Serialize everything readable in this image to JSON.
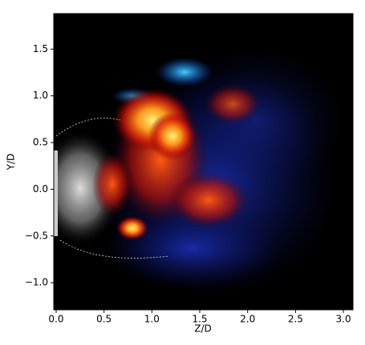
{
  "chart_data": {
    "type": "image",
    "xlabel": "Z/D",
    "ylabel": "Y/D",
    "xlim": [
      -0.025,
      3.1
    ],
    "ylim": [
      -1.29,
      1.88
    ],
    "xticks": [
      {
        "value": 0,
        "label": "0.0"
      },
      0.5,
      {
        "value": 1,
        "label": "1.0"
      },
      1.5,
      {
        "value": 2,
        "label": "2.0"
      },
      2.5,
      {
        "value": 3,
        "label": "3.0"
      }
    ],
    "yticks": [
      {
        "value": -1,
        "label": "−1.0"
      },
      {
        "value": -0.5,
        "label": "−0.5"
      },
      {
        "value": 0,
        "label": "0.0"
      },
      0.5,
      {
        "value": 1,
        "label": "1.0"
      },
      1.5
    ]
  }
}
